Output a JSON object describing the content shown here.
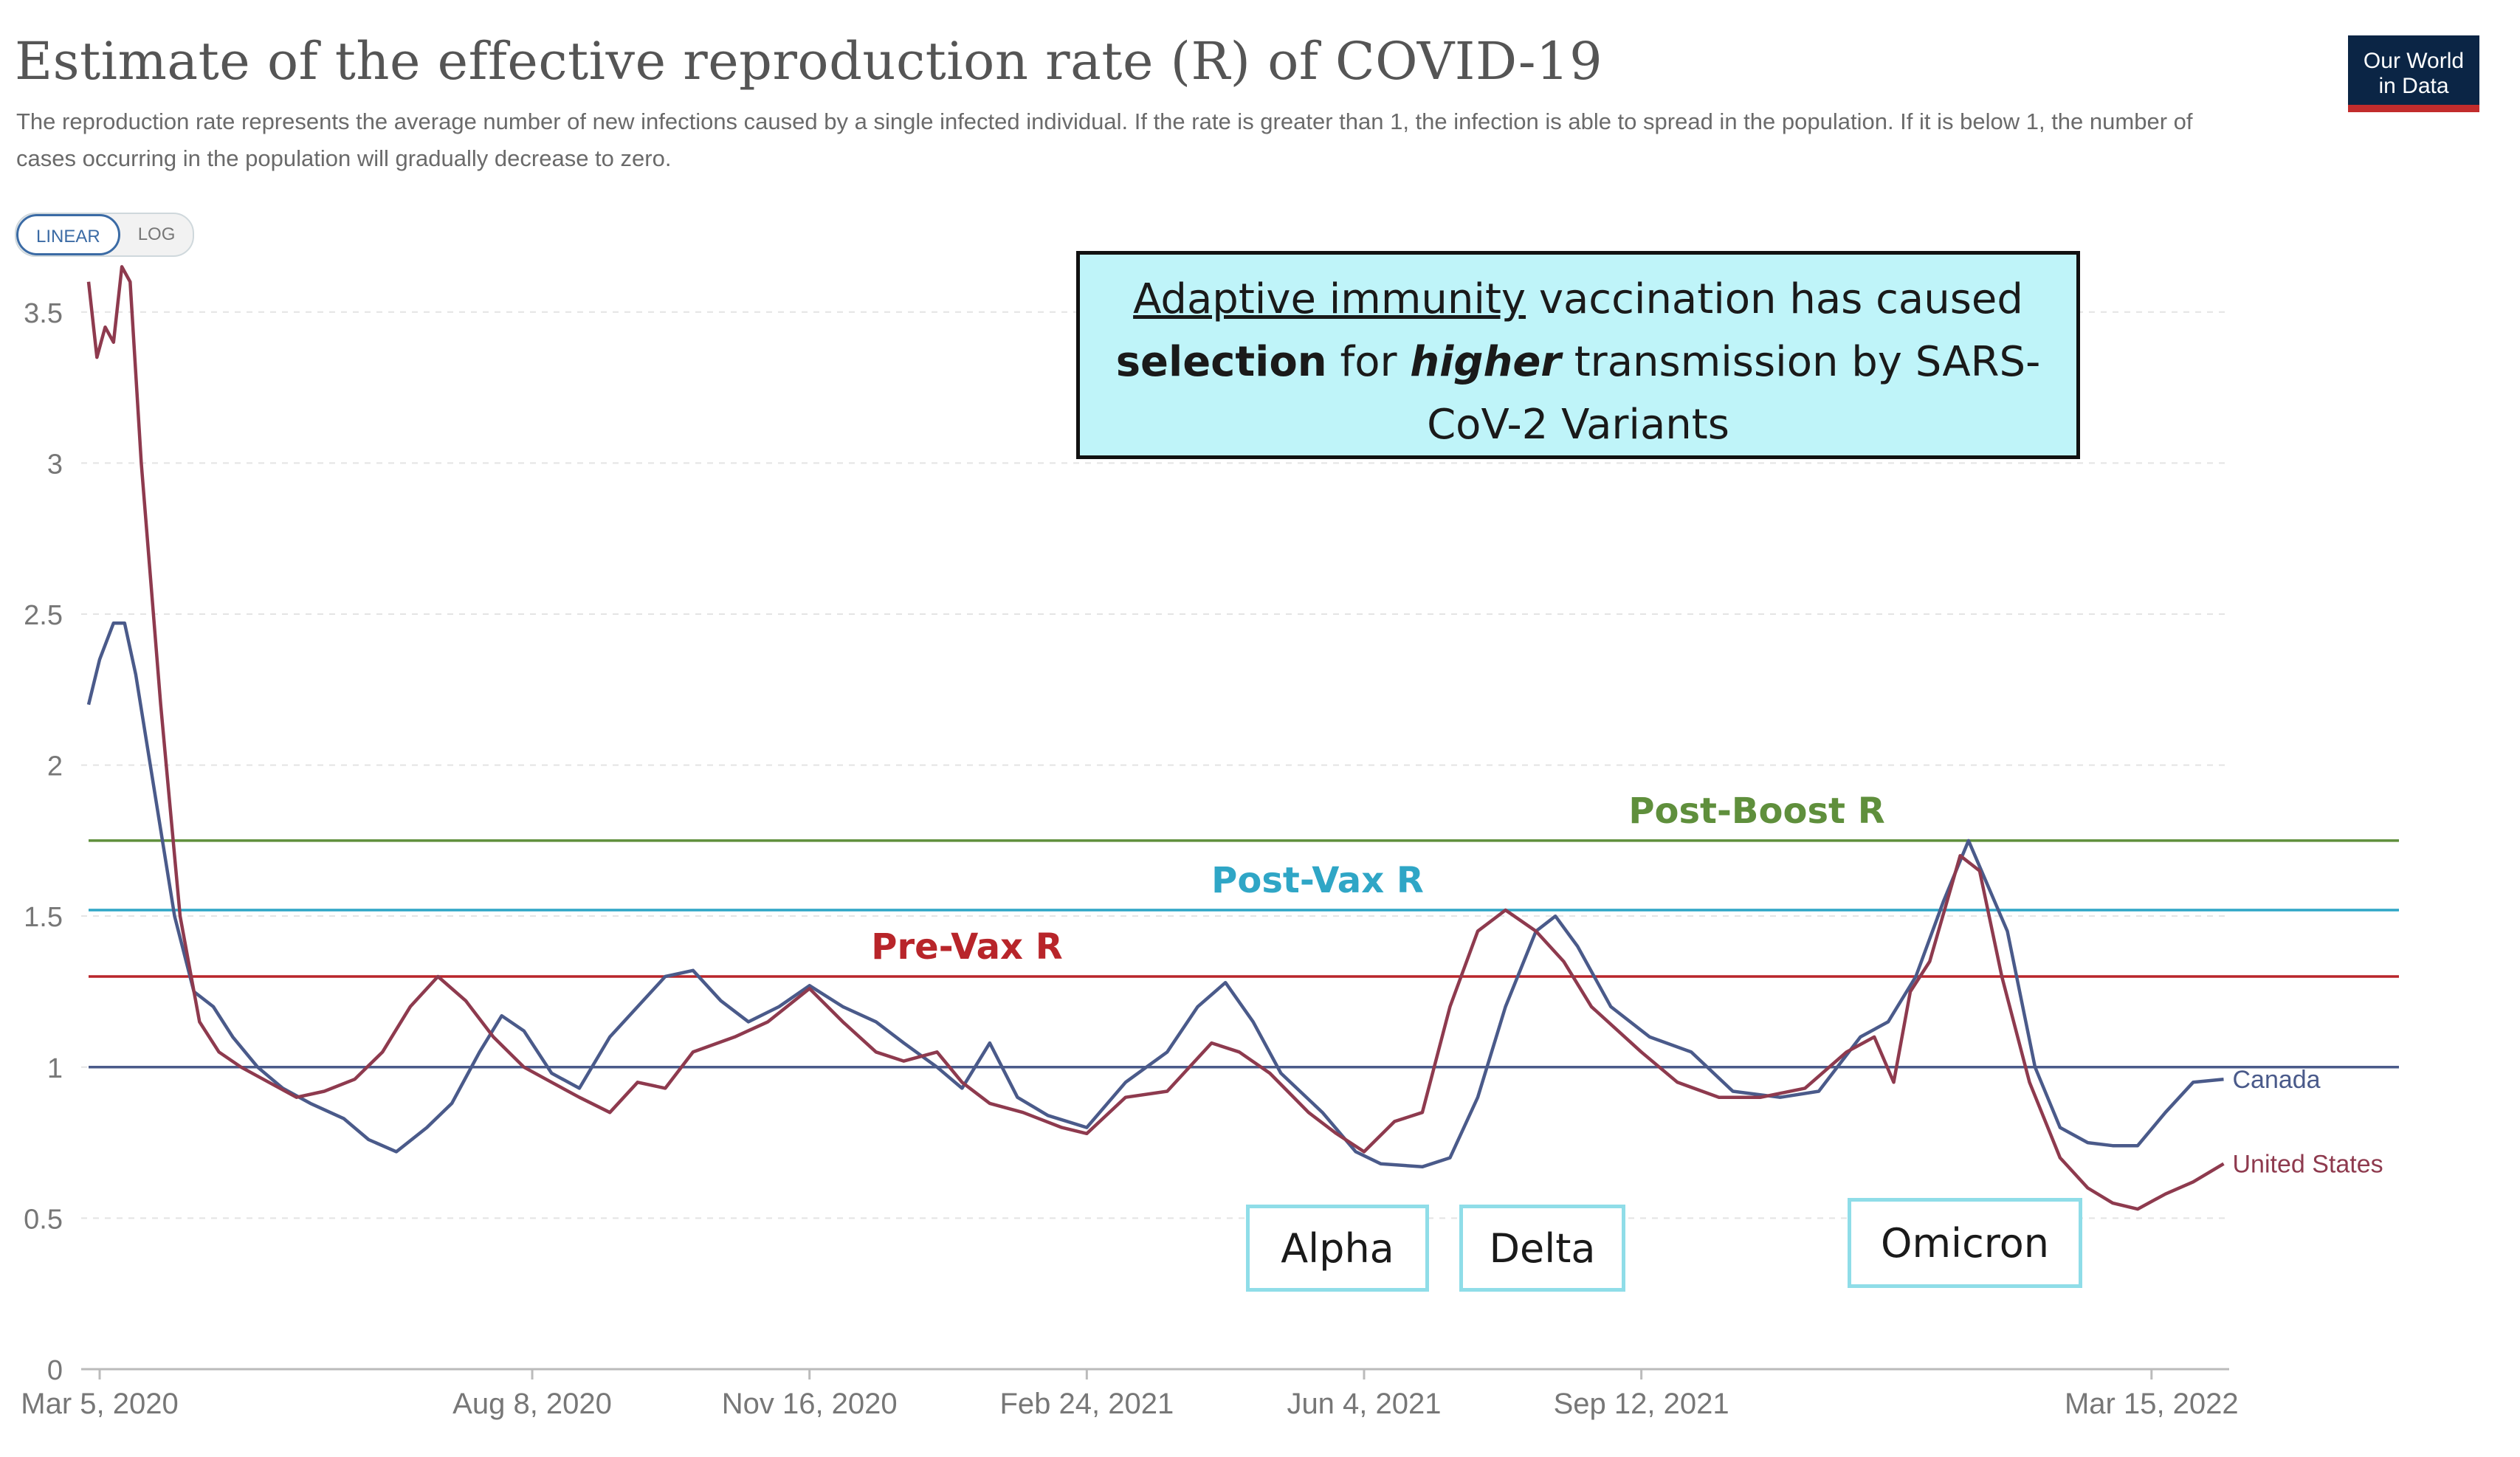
{
  "header": {
    "title": "Estimate of the effective reproduction rate (R) of COVID-19",
    "subtitle": "The reproduction rate represents the average number of new infections caused by a single infected individual. If the rate is greater than 1, the infection is able to spread in the population. If it is below 1, the number of cases occurring in the population will gradually decrease to zero.",
    "logo": [
      "Our World",
      "in Data"
    ],
    "scale_toggle": {
      "linear": "LINEAR",
      "log": "LOG",
      "selected": "LINEAR"
    }
  },
  "callout": {
    "part1": "Adaptive immunity",
    "part2": " vaccination has caused ",
    "part3": "selection",
    "part4": " for ",
    "part5": "higher",
    "part6": " transmission by SARS-CoV-2 Variants"
  },
  "variants": {
    "alpha": "Alpha",
    "delta": "Delta",
    "omicron": "Omicron"
  },
  "colors": {
    "canada": "#4a5a8a",
    "united_states": "#8e3a4e",
    "pre_vax": "#b8252a",
    "post_vax": "#2fa6c6",
    "post_boost": "#5f8f3c",
    "baseline": "#4a5a8a",
    "grid": "#e4e4e4",
    "axis_text": "#777777"
  },
  "chart_data": {
    "type": "line",
    "title": "Estimate of the effective reproduction rate (R) of COVID-19",
    "xlabel": "",
    "ylabel": "",
    "ylim": [
      0,
      3.8
    ],
    "xlim": [
      "2020-03-01",
      "2022-04-12"
    ],
    "yticks": [
      "0",
      "0.5",
      "1",
      "1.5",
      "2",
      "2.5",
      "3",
      "3.5"
    ],
    "xticks": [
      {
        "label": "Mar 5, 2020",
        "date": "2020-03-05"
      },
      {
        "label": "Aug 8, 2020",
        "date": "2020-08-08"
      },
      {
        "label": "Nov 16, 2020",
        "date": "2020-11-16"
      },
      {
        "label": "Feb 24, 2021",
        "date": "2021-02-24"
      },
      {
        "label": "Jun 4, 2021",
        "date": "2021-06-04"
      },
      {
        "label": "Sep 12, 2021",
        "date": "2021-09-12"
      },
      {
        "label": "Mar 15, 2022",
        "date": "2022-03-15"
      }
    ],
    "grid": true,
    "reference_lines": [
      {
        "label": "Post-Boost R",
        "y": 1.75,
        "color": "#5f8f3c"
      },
      {
        "label": "Post-Vax R",
        "y": 1.52,
        "color": "#2fa6c6"
      },
      {
        "label": "Pre-Vax R",
        "y": 1.3,
        "color": "#b8252a"
      },
      {
        "label": "",
        "y": 1.0,
        "color": "#4a5a8a"
      }
    ],
    "series": [
      {
        "name": "Canada",
        "color": "#4a5a8a",
        "points": [
          [
            "2020-03-01",
            2.2
          ],
          [
            "2020-03-05",
            2.35
          ],
          [
            "2020-03-10",
            2.47
          ],
          [
            "2020-03-14",
            2.47
          ],
          [
            "2020-03-18",
            2.3
          ],
          [
            "2020-03-25",
            1.9
          ],
          [
            "2020-04-01",
            1.5
          ],
          [
            "2020-04-08",
            1.25
          ],
          [
            "2020-04-15",
            1.2
          ],
          [
            "2020-04-22",
            1.1
          ],
          [
            "2020-05-01",
            1.0
          ],
          [
            "2020-05-10",
            0.93
          ],
          [
            "2020-05-20",
            0.88
          ],
          [
            "2020-06-01",
            0.83
          ],
          [
            "2020-06-10",
            0.76
          ],
          [
            "2020-06-20",
            0.72
          ],
          [
            "2020-07-01",
            0.8
          ],
          [
            "2020-07-10",
            0.88
          ],
          [
            "2020-07-20",
            1.05
          ],
          [
            "2020-07-28",
            1.17
          ],
          [
            "2020-08-05",
            1.12
          ],
          [
            "2020-08-15",
            0.98
          ],
          [
            "2020-08-25",
            0.93
          ],
          [
            "2020-09-05",
            1.1
          ],
          [
            "2020-09-15",
            1.2
          ],
          [
            "2020-09-25",
            1.3
          ],
          [
            "2020-10-05",
            1.32
          ],
          [
            "2020-10-15",
            1.22
          ],
          [
            "2020-10-25",
            1.15
          ],
          [
            "2020-11-05",
            1.2
          ],
          [
            "2020-11-16",
            1.27
          ],
          [
            "2020-11-28",
            1.2
          ],
          [
            "2020-12-10",
            1.15
          ],
          [
            "2020-12-20",
            1.08
          ],
          [
            "2021-01-01",
            1.0
          ],
          [
            "2021-01-10",
            0.93
          ],
          [
            "2021-01-20",
            1.08
          ],
          [
            "2021-01-30",
            0.9
          ],
          [
            "2021-02-10",
            0.84
          ],
          [
            "2021-02-24",
            0.8
          ],
          [
            "2021-03-10",
            0.95
          ],
          [
            "2021-03-25",
            1.05
          ],
          [
            "2021-04-05",
            1.2
          ],
          [
            "2021-04-15",
            1.28
          ],
          [
            "2021-04-25",
            1.15
          ],
          [
            "2021-05-05",
            0.98
          ],
          [
            "2021-05-20",
            0.85
          ],
          [
            "2021-06-01",
            0.72
          ],
          [
            "2021-06-10",
            0.68
          ],
          [
            "2021-06-25",
            0.67
          ],
          [
            "2021-07-05",
            0.7
          ],
          [
            "2021-07-15",
            0.9
          ],
          [
            "2021-07-25",
            1.2
          ],
          [
            "2021-08-05",
            1.45
          ],
          [
            "2021-08-12",
            1.5
          ],
          [
            "2021-08-20",
            1.4
          ],
          [
            "2021-09-01",
            1.2
          ],
          [
            "2021-09-15",
            1.1
          ],
          [
            "2021-09-30",
            1.05
          ],
          [
            "2021-10-15",
            0.92
          ],
          [
            "2021-11-01",
            0.9
          ],
          [
            "2021-11-15",
            0.92
          ],
          [
            "2021-11-30",
            1.1
          ],
          [
            "2021-12-10",
            1.15
          ],
          [
            "2021-12-20",
            1.3
          ],
          [
            "2021-12-30",
            1.55
          ],
          [
            "2022-01-08",
            1.75
          ],
          [
            "2022-01-15",
            1.6
          ],
          [
            "2022-01-22",
            1.45
          ],
          [
            "2022-02-01",
            1.0
          ],
          [
            "2022-02-10",
            0.8
          ],
          [
            "2022-02-20",
            0.75
          ],
          [
            "2022-03-01",
            0.74
          ],
          [
            "2022-03-10",
            0.74
          ],
          [
            "2022-03-20",
            0.85
          ],
          [
            "2022-03-30",
            0.95
          ],
          [
            "2022-04-10",
            0.96
          ]
        ]
      },
      {
        "name": "United States",
        "color": "#8e3a4e",
        "points": [
          [
            "2020-03-01",
            3.6
          ],
          [
            "2020-03-04",
            3.35
          ],
          [
            "2020-03-07",
            3.45
          ],
          [
            "2020-03-10",
            3.4
          ],
          [
            "2020-03-13",
            3.65
          ],
          [
            "2020-03-16",
            3.6
          ],
          [
            "2020-03-20",
            3.0
          ],
          [
            "2020-03-27",
            2.2
          ],
          [
            "2020-04-03",
            1.5
          ],
          [
            "2020-04-10",
            1.15
          ],
          [
            "2020-04-17",
            1.05
          ],
          [
            "2020-04-25",
            1.0
          ],
          [
            "2020-05-05",
            0.95
          ],
          [
            "2020-05-15",
            0.9
          ],
          [
            "2020-05-25",
            0.92
          ],
          [
            "2020-06-05",
            0.96
          ],
          [
            "2020-06-15",
            1.05
          ],
          [
            "2020-06-25",
            1.2
          ],
          [
            "2020-07-05",
            1.3
          ],
          [
            "2020-07-15",
            1.22
          ],
          [
            "2020-07-25",
            1.1
          ],
          [
            "2020-08-05",
            1.0
          ],
          [
            "2020-08-15",
            0.95
          ],
          [
            "2020-08-25",
            0.9
          ],
          [
            "2020-09-05",
            0.85
          ],
          [
            "2020-09-15",
            0.95
          ],
          [
            "2020-09-25",
            0.93
          ],
          [
            "2020-10-05",
            1.05
          ],
          [
            "2020-10-20",
            1.1
          ],
          [
            "2020-11-01",
            1.15
          ],
          [
            "2020-11-16",
            1.26
          ],
          [
            "2020-11-28",
            1.15
          ],
          [
            "2020-12-10",
            1.05
          ],
          [
            "2020-12-20",
            1.02
          ],
          [
            "2021-01-01",
            1.05
          ],
          [
            "2021-01-10",
            0.95
          ],
          [
            "2021-01-20",
            0.88
          ],
          [
            "2021-02-01",
            0.85
          ],
          [
            "2021-02-15",
            0.8
          ],
          [
            "2021-02-24",
            0.78
          ],
          [
            "2021-03-10",
            0.9
          ],
          [
            "2021-03-25",
            0.92
          ],
          [
            "2021-04-10",
            1.08
          ],
          [
            "2021-04-20",
            1.05
          ],
          [
            "2021-05-01",
            0.98
          ],
          [
            "2021-05-15",
            0.85
          ],
          [
            "2021-05-25",
            0.78
          ],
          [
            "2021-06-04",
            0.72
          ],
          [
            "2021-06-15",
            0.82
          ],
          [
            "2021-06-25",
            0.85
          ],
          [
            "2021-07-05",
            1.2
          ],
          [
            "2021-07-15",
            1.45
          ],
          [
            "2021-07-25",
            1.52
          ],
          [
            "2021-08-05",
            1.45
          ],
          [
            "2021-08-15",
            1.35
          ],
          [
            "2021-08-25",
            1.2
          ],
          [
            "2021-09-12",
            1.05
          ],
          [
            "2021-09-25",
            0.95
          ],
          [
            "2021-10-10",
            0.9
          ],
          [
            "2021-10-25",
            0.9
          ],
          [
            "2021-11-10",
            0.93
          ],
          [
            "2021-11-25",
            1.05
          ],
          [
            "2021-12-05",
            1.1
          ],
          [
            "2021-12-12",
            0.95
          ],
          [
            "2021-12-18",
            1.25
          ],
          [
            "2021-12-25",
            1.35
          ],
          [
            "2022-01-05",
            1.7
          ],
          [
            "2022-01-12",
            1.65
          ],
          [
            "2022-01-20",
            1.3
          ],
          [
            "2022-01-30",
            0.95
          ],
          [
            "2022-02-10",
            0.7
          ],
          [
            "2022-02-20",
            0.6
          ],
          [
            "2022-03-01",
            0.55
          ],
          [
            "2022-03-10",
            0.53
          ],
          [
            "2022-03-20",
            0.58
          ],
          [
            "2022-03-30",
            0.62
          ],
          [
            "2022-04-10",
            0.68
          ]
        ]
      }
    ]
  }
}
